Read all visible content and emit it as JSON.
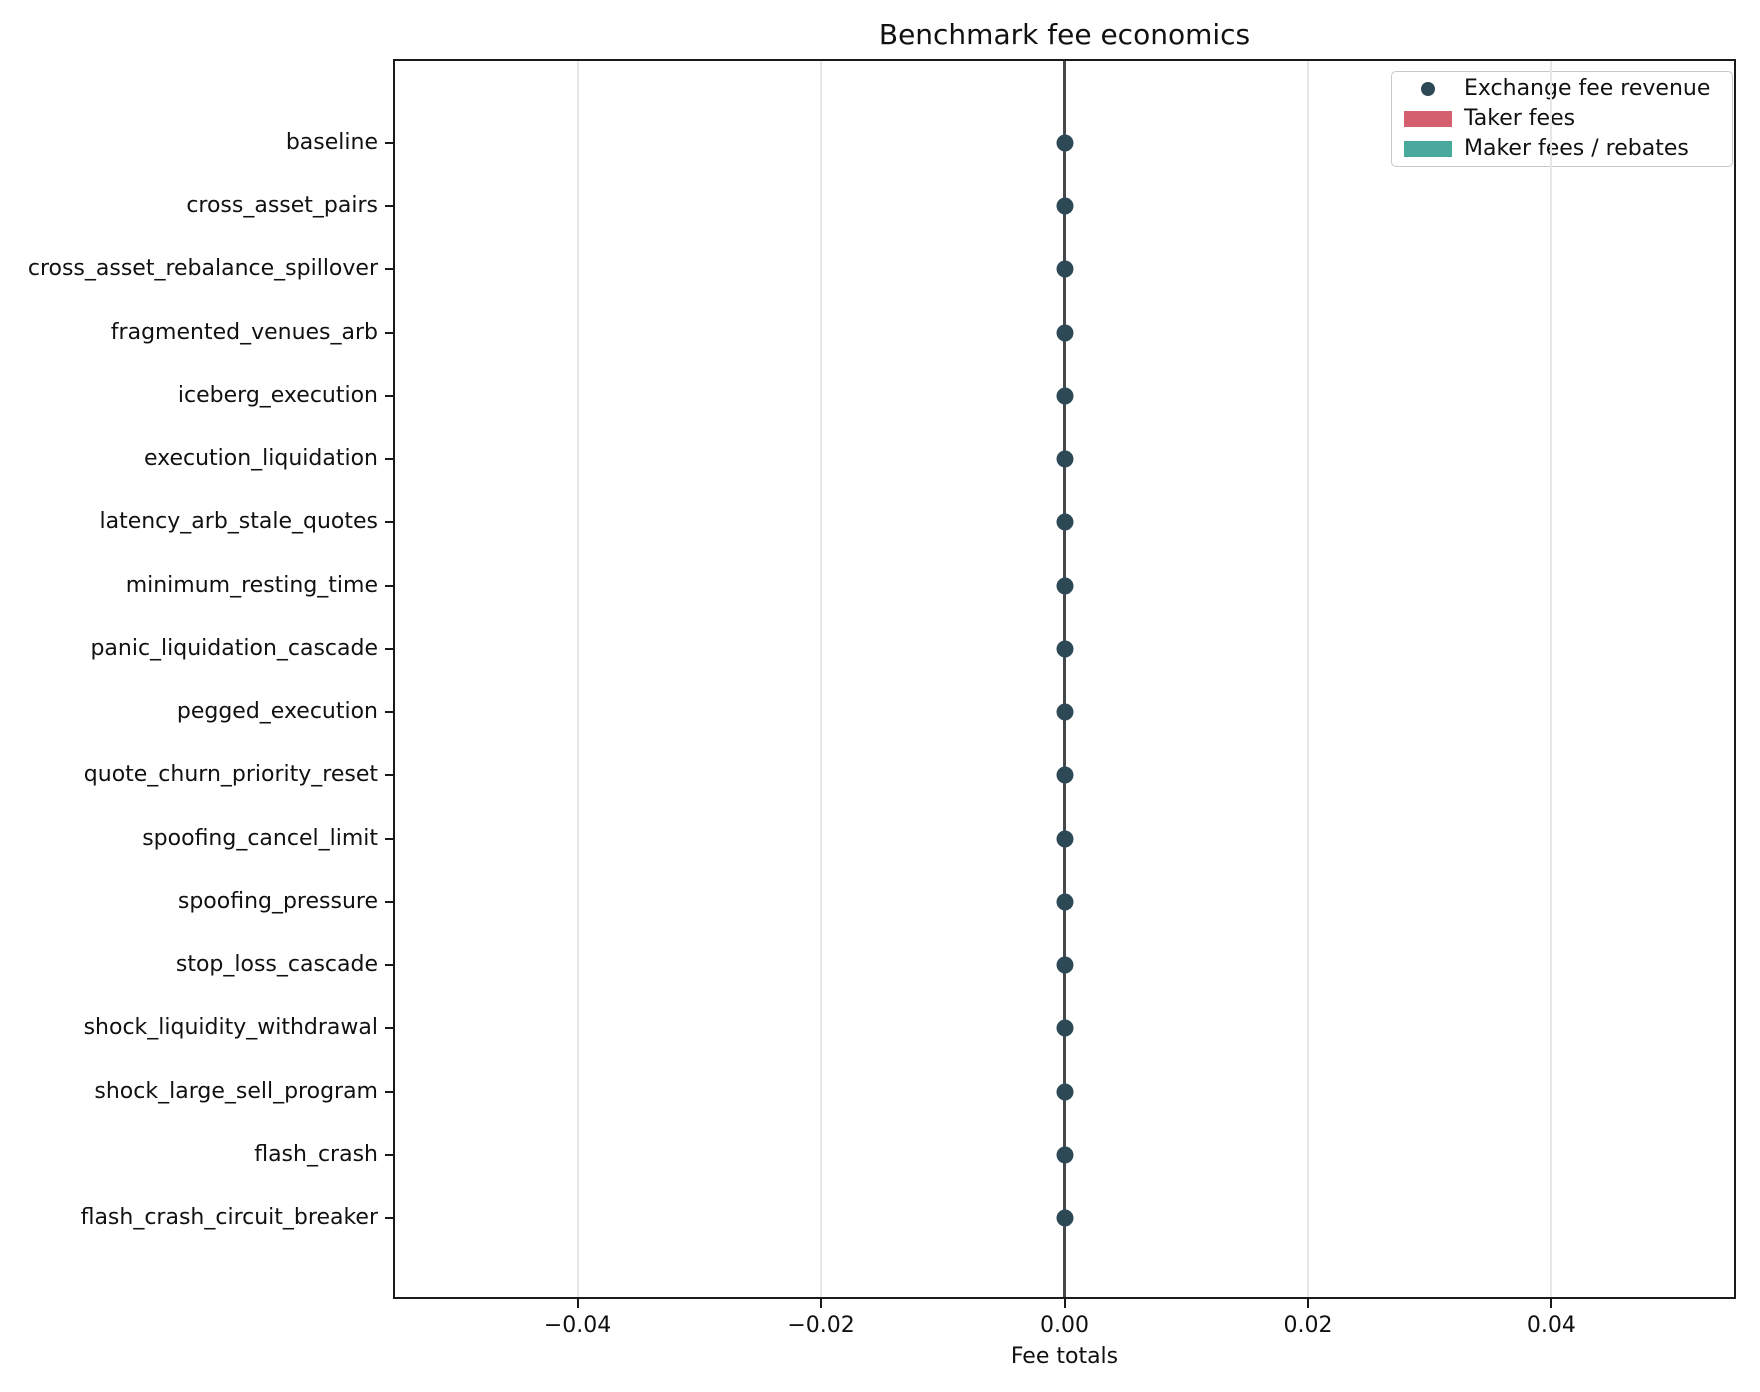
{
  "chart_data": {
    "type": "scatter",
    "title": "Benchmark fee economics",
    "xlabel": "Fee totals",
    "ylabel": "",
    "categories": [
      "baseline",
      "cross_asset_pairs",
      "cross_asset_rebalance_spillover",
      "fragmented_venues_arb",
      "iceberg_execution",
      "execution_liquidation",
      "latency_arb_stale_quotes",
      "minimum_resting_time",
      "panic_liquidation_cascade",
      "pegged_execution",
      "quote_churn_priority_reset",
      "spoofing_cancel_limit",
      "spoofing_pressure",
      "stop_loss_cascade",
      "shock_liquidity_withdrawal",
      "shock_large_sell_program",
      "flash_crash",
      "flash_crash_circuit_breaker"
    ],
    "series": [
      {
        "name": "Exchange fee revenue",
        "marker": "dot",
        "color": "#2e4956",
        "values": [
          0,
          0,
          0,
          0,
          0,
          0,
          0,
          0,
          0,
          0,
          0,
          0,
          0,
          0,
          0,
          0,
          0,
          0
        ]
      },
      {
        "name": "Taker fees",
        "marker": "bar",
        "color": "#d4606f",
        "values": [
          0,
          0,
          0,
          0,
          0,
          0,
          0,
          0,
          0,
          0,
          0,
          0,
          0,
          0,
          0,
          0,
          0,
          0
        ]
      },
      {
        "name": "Maker fees / rebates",
        "marker": "bar",
        "color": "#49a99c",
        "values": [
          0,
          0,
          0,
          0,
          0,
          0,
          0,
          0,
          0,
          0,
          0,
          0,
          0,
          0,
          0,
          0,
          0,
          0
        ]
      }
    ],
    "xlim": [
      -0.055,
      0.055
    ],
    "xticks": [
      -0.04,
      -0.02,
      0,
      0.02,
      0.04
    ],
    "xtick_labels": [
      "−0.04",
      "−0.02",
      "0.00",
      "0.02",
      "0.04"
    ],
    "grid": "vertical",
    "zero_line": true,
    "legend_position": "upper-right"
  }
}
